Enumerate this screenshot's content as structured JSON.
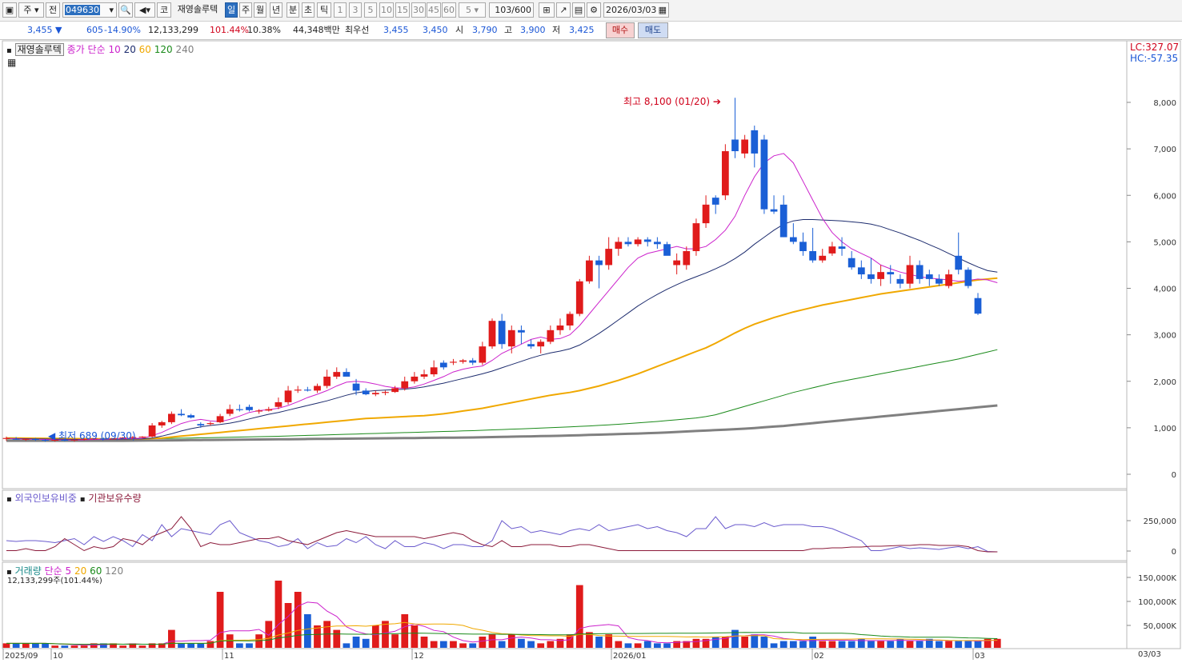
{
  "toolbar": {
    "market": "주",
    "prev": "전",
    "code": "049630",
    "market2": "코",
    "name": "재영솔루텍",
    "periods": [
      "일",
      "주",
      "월",
      "년",
      "분",
      "초",
      "틱"
    ],
    "intervals": [
      "1",
      "3",
      "5",
      "10",
      "15",
      "30",
      "45",
      "60"
    ],
    "interval_select": "5",
    "count": "103",
    "count_max": "/600",
    "date": "2026/03/03"
  },
  "quote": {
    "price": "3,455",
    "change": "605",
    "change_pct": "-14.90%",
    "volume": "12,133,299",
    "volume_ratio": "101.44%",
    "turnover": "10.38%",
    "amount": "44,348백만",
    "best_ask_label": "최우선",
    "best_ask": "3,455",
    "best_bid": "3,450",
    "open_label": "시",
    "open": "3,790",
    "high_label": "고",
    "high": "3,900",
    "low_label": "저",
    "low": "3,425",
    "buy_label": "매수",
    "sell_label": "매도"
  },
  "colors": {
    "up": "#e01b1b",
    "down": "#1a5fd6",
    "ma5": "#cc22cc",
    "ma10": "#1d2c6e",
    "ma20": "#f0a800",
    "ma60": "#1a8a1a",
    "ma120": "#808080"
  },
  "price_panel": {
    "legend_name": "재영솔루텍",
    "legend_ma": "종가 단순",
    "legend_periods": [
      "10",
      "20",
      "60",
      "120",
      "240"
    ],
    "lc": "LC:327.07",
    "hc": "HC:-57.35",
    "high_note": "최고 8,100 (01/20)",
    "low_note": "최저 689 (09/30)"
  },
  "holding_panel": {
    "legend_foreign": "외국인보유비중",
    "legend_inst": "기관보유수량"
  },
  "volume_panel": {
    "legend_volume": "거래량",
    "legend_ma": "단순",
    "legend_periods": [
      "5",
      "20",
      "60",
      "120"
    ],
    "current": "12,133,299주(101.44%)"
  },
  "x_axis_labels": [
    "2025/09",
    "10",
    "11",
    "12",
    "2026/01",
    "02",
    "03"
  ],
  "right_corner_label": "03/03",
  "chart_data": {
    "type": "candlestick",
    "price_ticks": [
      "8,000",
      "7,000",
      "6,000",
      "5,000",
      "4,000",
      "3,000",
      "2,000",
      "1,000",
      "0"
    ],
    "price_ylim": [
      0,
      8000
    ],
    "holding_ticks": [
      "250,000",
      "0"
    ],
    "volume_ticks": [
      "150,000K",
      "100,000K",
      "50,000K"
    ],
    "candles": [
      [
        780,
        720,
        810,
        760,
        "up"
      ],
      [
        760,
        740,
        800,
        750,
        "dn"
      ],
      [
        750,
        720,
        770,
        760,
        "up"
      ],
      [
        760,
        720,
        780,
        740,
        "dn"
      ],
      [
        740,
        700,
        760,
        730,
        "dn"
      ],
      [
        730,
        700,
        760,
        740,
        "up"
      ],
      [
        740,
        710,
        770,
        730,
        "dn"
      ],
      [
        730,
        700,
        760,
        745,
        "up"
      ],
      [
        745,
        730,
        770,
        760,
        "up"
      ],
      [
        760,
        740,
        780,
        770,
        "up"
      ],
      [
        770,
        740,
        790,
        760,
        "dn"
      ],
      [
        760,
        740,
        780,
        770,
        "up"
      ],
      [
        770,
        750,
        800,
        790,
        "up"
      ],
      [
        790,
        770,
        820,
        800,
        "up"
      ],
      [
        800,
        780,
        820,
        810,
        "up"
      ],
      [
        810,
        790,
        1100,
        1050,
        "up"
      ],
      [
        1050,
        1000,
        1150,
        1120,
        "up"
      ],
      [
        1120,
        1080,
        1350,
        1300,
        "up"
      ],
      [
        1300,
        1250,
        1400,
        1270,
        "dn"
      ],
      [
        1270,
        1200,
        1300,
        1220,
        "dn"
      ],
      [
        1050,
        1000,
        1120,
        1080,
        "dn"
      ],
      [
        1080,
        1050,
        1130,
        1100,
        "up"
      ],
      [
        1120,
        1100,
        1300,
        1250,
        "up"
      ],
      [
        1300,
        1250,
        1500,
        1400,
        "up"
      ],
      [
        1400,
        1350,
        1500,
        1380,
        "dn"
      ],
      [
        1380,
        1350,
        1500,
        1450,
        "dn"
      ],
      [
        1350,
        1300,
        1400,
        1370,
        "up"
      ],
      [
        1370,
        1350,
        1450,
        1400,
        "up"
      ],
      [
        1450,
        1400,
        1650,
        1550,
        "up"
      ],
      [
        1550,
        1500,
        1900,
        1800,
        "up"
      ],
      [
        1800,
        1750,
        1900,
        1820,
        "up"
      ],
      [
        1820,
        1780,
        1880,
        1800,
        "dn"
      ],
      [
        1800,
        1750,
        1950,
        1900,
        "up"
      ],
      [
        1900,
        1850,
        2250,
        2100,
        "up"
      ],
      [
        2100,
        2050,
        2300,
        2200,
        "up"
      ],
      [
        2200,
        2150,
        2280,
        2100,
        "dn"
      ],
      [
        1950,
        1700,
        2050,
        1800,
        "dn"
      ],
      [
        1800,
        1700,
        1850,
        1720,
        "dn"
      ],
      [
        1720,
        1680,
        1800,
        1750,
        "up"
      ],
      [
        1750,
        1700,
        1800,
        1770,
        "up"
      ],
      [
        1770,
        1750,
        1900,
        1850,
        "up"
      ],
      [
        1850,
        1800,
        2100,
        2000,
        "up"
      ],
      [
        2000,
        1950,
        2200,
        2100,
        "up"
      ],
      [
        2100,
        2050,
        2250,
        2150,
        "up"
      ],
      [
        2150,
        2100,
        2450,
        2300,
        "up"
      ],
      [
        2300,
        2250,
        2450,
        2400,
        "dn"
      ],
      [
        2400,
        2350,
        2480,
        2420,
        "up"
      ],
      [
        2420,
        2380,
        2480,
        2450,
        "up"
      ],
      [
        2450,
        2350,
        2500,
        2400,
        "dn"
      ],
      [
        2400,
        2350,
        2850,
        2750,
        "up"
      ],
      [
        2750,
        2700,
        3350,
        3300,
        "up"
      ],
      [
        3300,
        2700,
        3450,
        2800,
        "dn"
      ],
      [
        2750,
        2600,
        3200,
        3100,
        "up"
      ],
      [
        3100,
        2800,
        3200,
        3050,
        "dn"
      ],
      [
        2800,
        2700,
        2900,
        2750,
        "dn"
      ],
      [
        2750,
        2600,
        2900,
        2850,
        "up"
      ],
      [
        2850,
        2800,
        3200,
        3100,
        "up"
      ],
      [
        3100,
        3000,
        3350,
        3200,
        "up"
      ],
      [
        3200,
        3100,
        3500,
        3450,
        "up"
      ],
      [
        3450,
        3400,
        4200,
        4150,
        "up"
      ],
      [
        4150,
        4100,
        4700,
        4600,
        "up"
      ],
      [
        4600,
        4000,
        4700,
        4500,
        "dn"
      ],
      [
        4500,
        4400,
        5100,
        4850,
        "up"
      ],
      [
        4850,
        4700,
        5100,
        5000,
        "up"
      ],
      [
        5000,
        4900,
        5100,
        4950,
        "dn"
      ],
      [
        4950,
        4900,
        5100,
        5050,
        "up"
      ],
      [
        5050,
        4900,
        5100,
        5000,
        "dn"
      ],
      [
        5000,
        4850,
        5100,
        4950,
        "dn"
      ],
      [
        4950,
        4800,
        5000,
        4700,
        "dn"
      ],
      [
        4600,
        4300,
        4750,
        4500,
        "up"
      ],
      [
        4500,
        4400,
        4900,
        4800,
        "up"
      ],
      [
        4800,
        4700,
        5500,
        5400,
        "up"
      ],
      [
        5400,
        5300,
        6000,
        5800,
        "up"
      ],
      [
        5800,
        5600,
        6000,
        5950,
        "dn"
      ],
      [
        6000,
        5900,
        7100,
        6950,
        "up"
      ],
      [
        6950,
        6800,
        8100,
        7200,
        "dn"
      ],
      [
        7200,
        6800,
        7300,
        6900,
        "up"
      ],
      [
        6900,
        6600,
        7500,
        7400,
        "dn"
      ],
      [
        7200,
        5600,
        7300,
        5700,
        "dn"
      ],
      [
        5700,
        5600,
        6000,
        5650,
        "dn"
      ],
      [
        5800,
        5100,
        6000,
        5100,
        "dn"
      ],
      [
        5100,
        4950,
        5400,
        5000,
        "dn"
      ],
      [
        5000,
        4700,
        5200,
        4800,
        "dn"
      ],
      [
        4800,
        4550,
        5300,
        4600,
        "dn"
      ],
      [
        4600,
        4550,
        4850,
        4700,
        "up"
      ],
      [
        4750,
        4700,
        5000,
        4900,
        "up"
      ],
      [
        4900,
        4700,
        5100,
        4850,
        "dn"
      ],
      [
        4650,
        4400,
        4800,
        4450,
        "dn"
      ],
      [
        4450,
        4200,
        4600,
        4300,
        "dn"
      ],
      [
        4300,
        4100,
        4650,
        4200,
        "dn"
      ],
      [
        4200,
        4050,
        4500,
        4350,
        "up"
      ],
      [
        4350,
        4100,
        4500,
        4300,
        "dn"
      ],
      [
        4200,
        4000,
        4300,
        4100,
        "dn"
      ],
      [
        4100,
        4000,
        4700,
        4500,
        "up"
      ],
      [
        4500,
        4100,
        4600,
        4200,
        "dn"
      ],
      [
        4200,
        4050,
        4400,
        4300,
        "dn"
      ],
      [
        4200,
        4050,
        4300,
        4100,
        "dn"
      ],
      [
        4050,
        4000,
        4400,
        4300,
        "up"
      ],
      [
        4400,
        4300,
        5200,
        4700,
        "dn"
      ],
      [
        4400,
        4000,
        4450,
        4050,
        "dn"
      ],
      [
        3790,
        3425,
        3900,
        3455,
        "dn"
      ]
    ],
    "volumes": [
      2,
      2,
      2,
      2,
      2,
      1,
      1,
      1,
      1,
      2,
      2,
      2,
      1,
      2,
      1,
      2,
      2,
      8,
      2,
      2,
      2,
      3,
      25,
      6,
      2,
      2,
      6,
      12,
      30,
      20,
      25,
      15,
      10,
      12,
      8,
      2,
      5,
      4,
      10,
      12,
      6,
      15,
      10,
      5,
      3,
      3,
      3,
      2,
      2,
      5,
      6,
      3,
      6,
      4,
      3,
      2,
      3,
      4,
      6,
      28,
      7,
      5,
      6,
      3,
      2,
      2,
      3,
      2,
      2,
      3,
      3,
      4,
      4,
      5,
      5,
      8,
      5,
      6,
      5,
      2,
      3,
      3,
      3,
      5,
      3,
      3,
      3,
      3,
      4,
      3,
      3,
      3,
      4,
      3,
      3,
      4,
      3,
      3,
      3,
      3,
      3,
      4,
      4
    ],
    "ma_lines": {
      "ma5": [
        770,
        760,
        755,
        752,
        748,
        742,
        740,
        738,
        742,
        748,
        754,
        760,
        764,
        770,
        776,
        830,
        900,
        1000,
        1090,
        1150,
        1180,
        1150,
        1130,
        1180,
        1250,
        1330,
        1370,
        1390,
        1420,
        1480,
        1560,
        1650,
        1720,
        1800,
        1900,
        1980,
        2000,
        1980,
        1940,
        1890,
        1860,
        1850,
        1880,
        1940,
        2020,
        2100,
        2200,
        2260,
        2300,
        2330,
        2450,
        2600,
        2700,
        2800,
        2900,
        2950,
        2900,
        2920,
        3000,
        3200,
        3450,
        3700,
        3950,
        4200,
        4450,
        4650,
        4750,
        4800,
        4850,
        4900,
        4850,
        4850,
        4900,
        5050,
        5250,
        5550,
        6000,
        6400,
        6700,
        6850,
        6900,
        6700,
        6300,
        5900,
        5500,
        5200,
        5000,
        4850,
        4750,
        4650,
        4500,
        4420,
        4350,
        4300,
        4250,
        4220,
        4200,
        4180,
        4150,
        4170,
        4200,
        4180,
        4120
      ],
      "ma10": [
        770,
        768,
        765,
        762,
        758,
        755,
        752,
        750,
        748,
        748,
        750,
        752,
        754,
        758,
        762,
        780,
        820,
        870,
        930,
        980,
        1020,
        1050,
        1070,
        1100,
        1140,
        1190,
        1240,
        1290,
        1330,
        1380,
        1430,
        1480,
        1530,
        1580,
        1640,
        1700,
        1750,
        1780,
        1800,
        1810,
        1820,
        1830,
        1850,
        1880,
        1920,
        1960,
        2010,
        2060,
        2110,
        2160,
        2220,
        2290,
        2360,
        2430,
        2500,
        2560,
        2610,
        2650,
        2700,
        2780,
        2900,
        3030,
        3170,
        3320,
        3470,
        3620,
        3750,
        3870,
        3980,
        4080,
        4170,
        4250,
        4330,
        4420,
        4520,
        4640,
        4780,
        4950,
        5100,
        5250,
        5380,
        5450,
        5480,
        5480,
        5470,
        5460,
        5450,
        5430,
        5410,
        5380,
        5330,
        5260,
        5190,
        5110,
        5030,
        4940,
        4850,
        4750,
        4650,
        4550,
        4460,
        4380,
        4350
      ],
      "ma20": [
        780,
        778,
        776,
        774,
        772,
        770,
        768,
        766,
        764,
        763,
        762,
        762,
        762,
        763,
        764,
        770,
        780,
        800,
        820,
        840,
        860,
        880,
        900,
        920,
        940,
        960,
        980,
        1000,
        1020,
        1040,
        1060,
        1080,
        1100,
        1120,
        1140,
        1160,
        1180,
        1200,
        1210,
        1220,
        1230,
        1240,
        1250,
        1260,
        1280,
        1300,
        1330,
        1360,
        1390,
        1420,
        1460,
        1500,
        1540,
        1580,
        1620,
        1660,
        1700,
        1730,
        1760,
        1800,
        1850,
        1900,
        1960,
        2020,
        2090,
        2160,
        2240,
        2320,
        2400,
        2480,
        2560,
        2640,
        2720,
        2820,
        2930,
        3040,
        3140,
        3230,
        3300,
        3370,
        3430,
        3490,
        3540,
        3590,
        3640,
        3680,
        3720,
        3760,
        3800,
        3840,
        3880,
        3910,
        3940,
        3970,
        4000,
        4030,
        4060,
        4090,
        4120,
        4150,
        4180,
        4200,
        4220
      ],
      "ma60": [
        760,
        760,
        760,
        760,
        760,
        760,
        760,
        760,
        760,
        760,
        760,
        760,
        760,
        762,
        764,
        766,
        768,
        772,
        776,
        780,
        784,
        788,
        792,
        796,
        800,
        804,
        808,
        812,
        818,
        824,
        830,
        836,
        842,
        848,
        854,
        860,
        866,
        872,
        878,
        884,
        890,
        896,
        902,
        908,
        914,
        920,
        926,
        932,
        938,
        946,
        954,
        962,
        970,
        978,
        986,
        994,
        1002,
        1010,
        1020,
        1030,
        1040,
        1052,
        1064,
        1076,
        1090,
        1104,
        1120,
        1136,
        1154,
        1172,
        1192,
        1212,
        1240,
        1280,
        1340,
        1400,
        1460,
        1520,
        1580,
        1640,
        1700,
        1760,
        1810,
        1860,
        1910,
        1960,
        2000,
        2040,
        2080,
        2120,
        2160,
        2200,
        2240,
        2280,
        2320,
        2360,
        2400,
        2440,
        2480,
        2530,
        2580,
        2630,
        2680
      ],
      "ma120": [
        720,
        720,
        720,
        720,
        720,
        720,
        720,
        720,
        720,
        720,
        720,
        720,
        720,
        722,
        724,
        726,
        728,
        730,
        732,
        734,
        736,
        738,
        740,
        742,
        744,
        746,
        748,
        750,
        752,
        754,
        756,
        758,
        760,
        762,
        764,
        766,
        768,
        770,
        772,
        774,
        776,
        778,
        780,
        782,
        784,
        786,
        788,
        790,
        792,
        796,
        800,
        804,
        808,
        812,
        816,
        820,
        824,
        828,
        834,
        840,
        846,
        852,
        858,
        864,
        870,
        876,
        884,
        892,
        900,
        910,
        920,
        930,
        940,
        950,
        960,
        970,
        980,
        995,
        1010,
        1025,
        1040,
        1060,
        1080,
        1100,
        1120,
        1140,
        1160,
        1180,
        1200,
        1220,
        1240,
        1260,
        1280,
        1300,
        1320,
        1340,
        1360,
        1380,
        1400,
        1420,
        1440,
        1460,
        1480
      ]
    }
  }
}
